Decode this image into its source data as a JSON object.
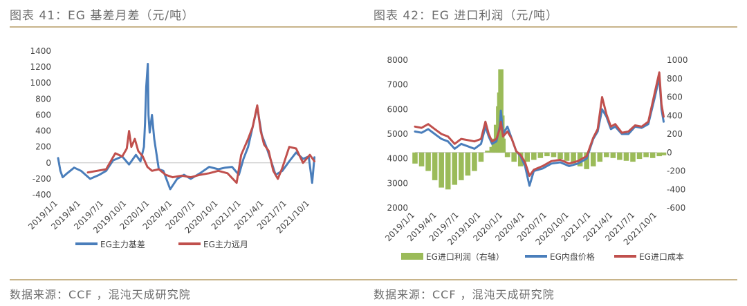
{
  "left": {
    "title": "图表 41：EG 基差月差（元/吨）",
    "source": "数据来源：CCF ，混沌天成研究院",
    "chart_data": {
      "type": "line",
      "categories": [
        "2019/1/1",
        "2019/4/1",
        "2019/7/1",
        "2019/10/1",
        "2020/1/1",
        "2020/4/1",
        "2020/7/1",
        "2020/10/1",
        "2021/1/1",
        "2021/4/1",
        "2021/7/1",
        "2021/10/1"
      ],
      "ylim": [
        -400,
        1400
      ],
      "yticks": [
        "1400",
        "1200",
        "1000",
        "800",
        "600",
        "400",
        "200",
        "0",
        "-200",
        "-400"
      ],
      "grid": false,
      "legend_position": "bottom",
      "series": [
        {
          "name": "EG主力基差",
          "color": "#4a7ebb",
          "x": [
            0,
            0.1,
            0.2,
            0.4,
            0.7,
            1,
            1.4,
            1.8,
            2.1,
            2.4,
            2.8,
            3.1,
            3.4,
            3.6,
            3.75,
            3.8,
            3.85,
            3.92,
            3.95,
            4.0,
            4.1,
            4.2,
            4.4,
            4.6,
            4.9,
            5.2,
            5.5,
            5.8,
            6.2,
            6.6,
            7.0,
            7.3,
            7.6,
            7.9,
            8.1,
            8.3,
            8.5,
            8.7,
            8.9,
            9.1,
            9.3,
            9.5,
            9.8,
            10.1,
            10.4,
            10.7,
            10.95,
            11.1,
            11.2
          ],
          "y": [
            60,
            -100,
            -180,
            -130,
            -60,
            -100,
            -200,
            -150,
            -100,
            30,
            80,
            -20,
            100,
            20,
            200,
            500,
            950,
            1240,
            600,
            380,
            600,
            300,
            -80,
            -100,
            -330,
            -200,
            -150,
            -200,
            -130,
            -50,
            -80,
            -60,
            -50,
            -150,
            50,
            200,
            450,
            700,
            350,
            200,
            30,
            -150,
            -100,
            20,
            130,
            50,
            80,
            -250,
            70
          ]
        },
        {
          "name": "EG主力远月",
          "color": "#c0504d",
          "x": [
            1.3,
            1.7,
            2.1,
            2.5,
            2.8,
            3.0,
            3.1,
            3.2,
            3.35,
            3.5,
            3.7,
            3.9,
            4.1,
            4.4,
            4.7,
            5.0,
            5.4,
            5.8,
            6.2,
            6.6,
            7.0,
            7.4,
            7.8,
            8.0,
            8.3,
            8.5,
            8.7,
            8.85,
            9.0,
            9.2,
            9.4,
            9.6,
            9.8,
            10.1,
            10.4,
            10.7,
            11.0,
            11.2
          ],
          "y": [
            -120,
            -100,
            -80,
            120,
            80,
            180,
            400,
            200,
            300,
            150,
            80,
            -50,
            -100,
            -80,
            -150,
            -180,
            -160,
            -180,
            -150,
            -130,
            -100,
            -130,
            -250,
            100,
            300,
            450,
            720,
            400,
            230,
            150,
            -100,
            -200,
            -60,
            200,
            180,
            0,
            100,
            20
          ]
        }
      ]
    }
  },
  "right": {
    "title": "图表 42：EG 进口利润（元/吨）",
    "source": "数据来源：CCF ，混沌天成研究院",
    "chart_data": {
      "type": "line",
      "categories": [
        "2019/1/1",
        "2019/4/1",
        "2019/7/1",
        "2019/10/1",
        "2020/1/1",
        "2020/4/1",
        "2020/7/1",
        "2020/10/1",
        "2021/1/1",
        "2021/4/1",
        "2021/7/1",
        "2021/10/1"
      ],
      "ylim": [
        2000,
        8000
      ],
      "ylim_right": [
        -600,
        1000
      ],
      "yticks": [
        "8000",
        "7000",
        "6000",
        "5000",
        "4000",
        "3000",
        "2000"
      ],
      "yticks_right": [
        "1000",
        "800",
        "600",
        "400",
        "200",
        "0",
        "-200",
        "-400",
        "-600"
      ],
      "grid": false,
      "legend_position": "bottom",
      "series": [
        {
          "name": "EG进口利润（右轴）",
          "color": "#9bbb59",
          "type": "bar",
          "axis": "right",
          "x": [
            0,
            0.3,
            0.6,
            0.9,
            1.2,
            1.5,
            1.8,
            2.1,
            2.4,
            2.7,
            3.0,
            3.3,
            3.5,
            3.6,
            3.7,
            3.8,
            3.85,
            3.9,
            3.95,
            4.0,
            4.2,
            4.5,
            4.8,
            5.1,
            5.4,
            5.7,
            6.0,
            6.3,
            6.6,
            6.9,
            7.2,
            7.5,
            7.8,
            8.1,
            8.4,
            8.7,
            9.0,
            9.3,
            9.6,
            9.9,
            10.2,
            10.5,
            10.8,
            11.1,
            11.3
          ],
          "y": [
            -120,
            -150,
            -200,
            -300,
            -380,
            -400,
            -350,
            -300,
            -250,
            -200,
            -100,
            20,
            60,
            150,
            300,
            500,
            650,
            900,
            400,
            150,
            -50,
            -100,
            -150,
            -100,
            -80,
            -60,
            -40,
            -50,
            -70,
            -90,
            -120,
            -150,
            -180,
            -150,
            -100,
            -50,
            -60,
            -80,
            -90,
            -100,
            -70,
            -50,
            -60,
            -40,
            -30
          ]
        },
        {
          "name": "EG内盘价格",
          "color": "#4a7ebb",
          "axis": "left",
          "x": [
            0,
            0.3,
            0.6,
            0.9,
            1.2,
            1.5,
            1.8,
            2.1,
            2.4,
            2.7,
            3.0,
            3.2,
            3.35,
            3.5,
            3.7,
            3.85,
            3.9,
            4.0,
            4.2,
            4.4,
            4.6,
            4.8,
            5.0,
            5.2,
            5.4,
            5.8,
            6.2,
            6.6,
            7.0,
            7.4,
            7.8,
            8.1,
            8.3,
            8.5,
            8.7,
            8.9,
            9.1,
            9.4,
            9.7,
            10.0,
            10.3,
            10.6,
            10.9,
            11.1,
            11.2,
            11.3
          ],
          "y": [
            5100,
            5050,
            5200,
            5000,
            4800,
            4700,
            4400,
            4600,
            4500,
            4400,
            4600,
            5300,
            4900,
            4600,
            4700,
            5300,
            5950,
            5000,
            5300,
            4800,
            4300,
            4100,
            3700,
            2900,
            3500,
            3600,
            3800,
            3850,
            3700,
            3800,
            4000,
            4800,
            5100,
            6000,
            5700,
            5200,
            5300,
            5000,
            5000,
            5300,
            5250,
            5400,
            6500,
            7300,
            6000,
            5500
          ]
        },
        {
          "name": "EG进口成本",
          "color": "#c0504d",
          "axis": "left",
          "x": [
            0,
            0.3,
            0.6,
            0.9,
            1.2,
            1.5,
            1.8,
            2.1,
            2.4,
            2.7,
            3.0,
            3.2,
            3.35,
            3.5,
            3.7,
            3.85,
            3.9,
            4.0,
            4.2,
            4.4,
            4.6,
            4.8,
            5.0,
            5.2,
            5.4,
            5.8,
            6.2,
            6.6,
            7.0,
            7.4,
            7.8,
            8.1,
            8.3,
            8.5,
            8.7,
            8.9,
            9.1,
            9.4,
            9.7,
            10.0,
            10.3,
            10.6,
            10.9,
            11.1,
            11.2,
            11.3
          ],
          "y": [
            5300,
            5250,
            5400,
            5200,
            5000,
            4900,
            4600,
            4800,
            4750,
            4700,
            4800,
            5500,
            5000,
            4700,
            4800,
            5200,
            5500,
            4900,
            5100,
            4800,
            4300,
            4150,
            3850,
            3300,
            3550,
            3700,
            3900,
            3950,
            3800,
            3900,
            4100,
            4850,
            5200,
            6500,
            5800,
            5300,
            5400,
            5050,
            5100,
            5350,
            5300,
            5500,
            6700,
            7500,
            6200,
            5700
          ]
        }
      ]
    }
  }
}
